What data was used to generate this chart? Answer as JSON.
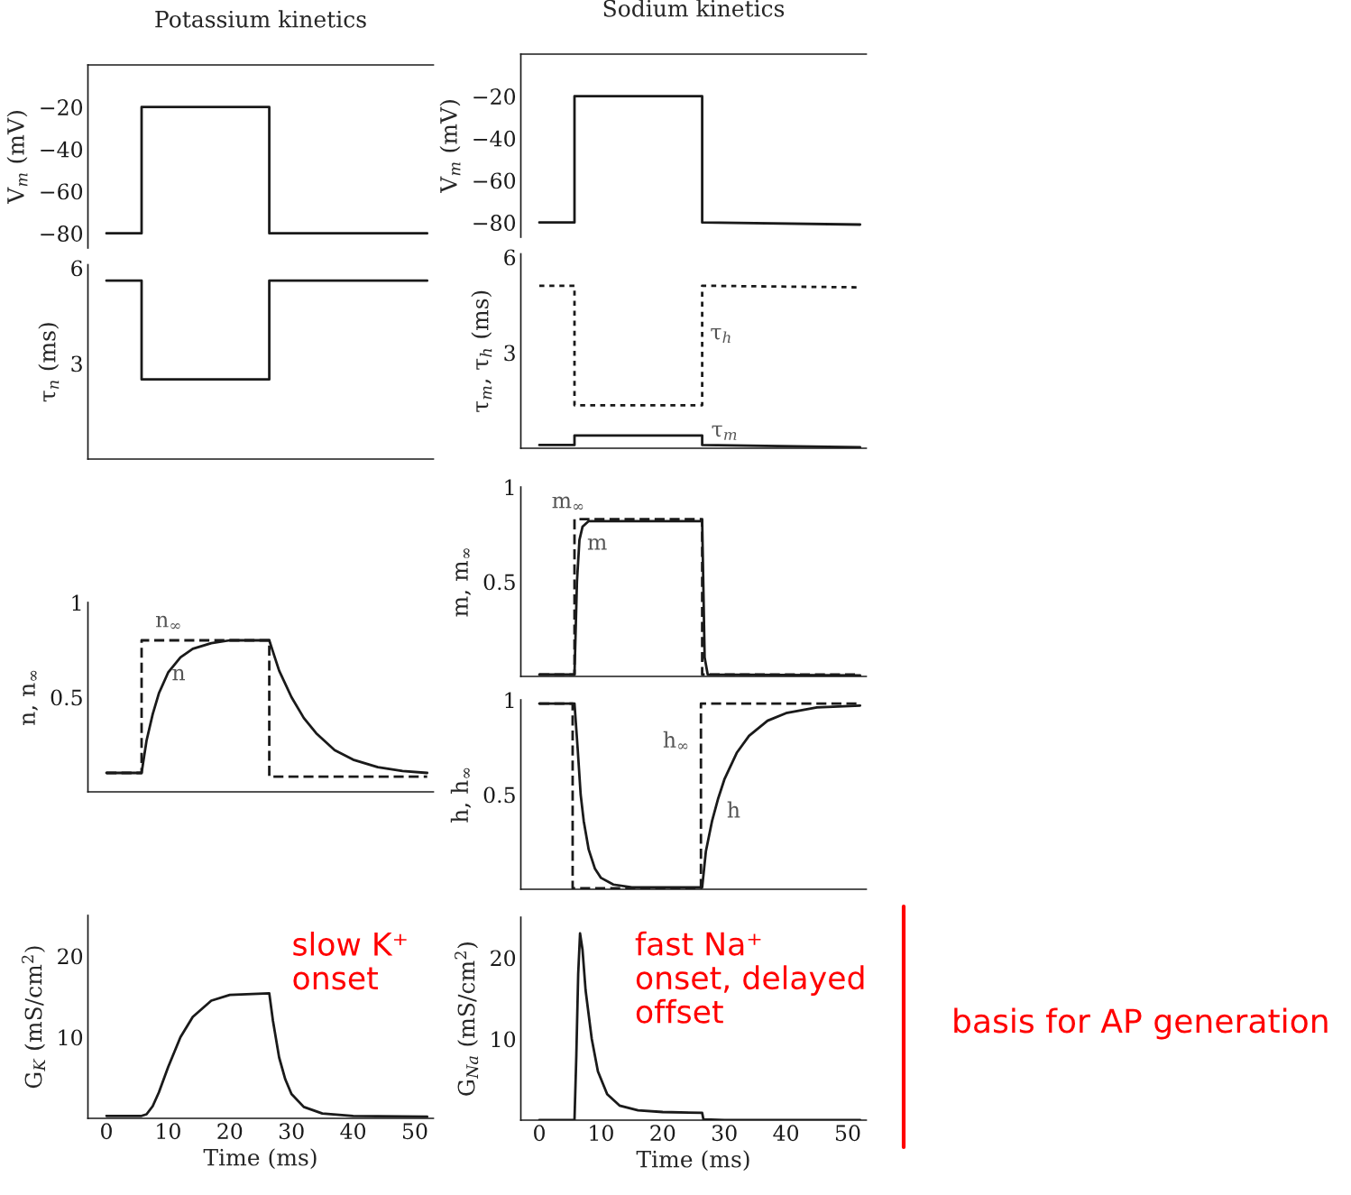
{
  "chart_data": [
    {
      "type": "line",
      "title": "Potassium kinetics",
      "ylabel": "V$_{m}$ (mV)",
      "xlim": [
        -3,
        53
      ],
      "ylim": [
        -87,
        0
      ],
      "xticks": [
        0,
        10,
        20,
        30,
        40,
        50
      ],
      "yticks": [
        {
          "value": -20,
          "label": "−20"
        },
        {
          "value": -40,
          "label": "−40"
        },
        {
          "value": -60,
          "label": "−60"
        },
        {
          "value": -80,
          "label": "−80"
        }
      ],
      "tick_labels": "y",
      "series": [
        {
          "color": "#1a1a1a",
          "line_style": "solid",
          "x": [
            0,
            5.7,
            5.7,
            26.4,
            26.4,
            52
          ],
          "values": [
            -80,
            -80,
            -20,
            -20,
            -80,
            -80
          ]
        }
      ]
    },
    {
      "type": "line",
      "title": "Sodium kinetics",
      "ylabel": "V$_{m}$ (mV)",
      "xlim": [
        -3,
        53
      ],
      "ylim": [
        -87,
        0
      ],
      "xticks": [
        0,
        10,
        20,
        30,
        40,
        50
      ],
      "yticks": [
        {
          "value": -20,
          "label": "−20"
        },
        {
          "value": -40,
          "label": "−40"
        },
        {
          "value": -60,
          "label": "−60"
        },
        {
          "value": -80,
          "label": "−80"
        }
      ],
      "tick_labels": "y",
      "series": [
        {
          "color": "#1a1a1a",
          "line_style": "solid",
          "x": [
            0,
            5.7,
            5.7,
            26.4,
            26.4,
            52
          ],
          "values": [
            -80,
            -80,
            -20,
            -20,
            -80,
            -81
          ]
        }
      ]
    },
    {
      "type": "line",
      "ylabel": "τ$_{n}$ (ms)",
      "xlim": [
        -3,
        53
      ],
      "ylim": [
        0,
        6.1
      ],
      "xticks": [
        0,
        10,
        20,
        30,
        40,
        50
      ],
      "yticks": [
        3,
        6
      ],
      "tick_labels": "y",
      "series": [
        {
          "color": "#1a1a1a",
          "line_style": "solid",
          "x": [
            0,
            5.7,
            5.7,
            26.4,
            26.4,
            52
          ],
          "values": [
            5.6,
            5.6,
            2.5,
            2.5,
            5.6,
            5.6
          ]
        }
      ]
    },
    {
      "type": "line",
      "ylabel": "τ$_{m}$, τ$_{h}$ (ms)",
      "xlim": [
        -3,
        53
      ],
      "ylim": [
        0,
        6.1
      ],
      "xticks": [
        0,
        10,
        20,
        30,
        40,
        50
      ],
      "yticks": [
        3,
        6
      ],
      "tick_labels": "y",
      "series": [
        {
          "color": "#1a1a1a",
          "line_style": "dotted",
          "x": [
            0,
            5.7,
            5.7,
            26.4,
            26.4,
            52
          ],
          "values": [
            5.1,
            5.1,
            1.35,
            1.35,
            5.1,
            5.05
          ]
        },
        {
          "color": "#1a1a1a",
          "line_style": "solid",
          "x": [
            0,
            5.7,
            5.7,
            26.4,
            26.4,
            52
          ],
          "values": [
            0.1,
            0.1,
            0.4,
            0.4,
            0.1,
            0.03
          ]
        }
      ],
      "annotations": [
        "τ$_{h}$",
        "τ$_{m}$"
      ]
    },
    {
      "type": "line",
      "ylabel": "m, m$_{∞}$",
      "xlim": [
        -3,
        53
      ],
      "ylim": [
        0,
        1
      ],
      "xticks": [
        0,
        10,
        20,
        30,
        40,
        50
      ],
      "yticks": [
        0.5,
        1
      ],
      "tick_labels": "y",
      "series": [
        {
          "color": "#1a1a1a",
          "line_style": "solid",
          "x": [
            0,
            5.7,
            6.1,
            6.5,
            7,
            8,
            26.4,
            26.8,
            27.3,
            52
          ],
          "values": [
            0.01,
            0.01,
            0.5,
            0.72,
            0.79,
            0.82,
            0.82,
            0.1,
            0.01,
            0.005
          ]
        },
        {
          "color": "#1a1a1a",
          "line_style": "dashed",
          "x": [
            0,
            5.7,
            5.7,
            26.4,
            26.4,
            52
          ],
          "values": [
            0.01,
            0.01,
            0.83,
            0.83,
            0.01,
            0.01
          ]
        }
      ],
      "annotations": [
        "m$_{∞}$",
        "m"
      ]
    },
    {
      "type": "line",
      "ylabel": "n, n$_{∞}$",
      "xlim": [
        -3,
        53
      ],
      "ylim": [
        0,
        1
      ],
      "xticks": [
        0,
        10,
        20,
        30,
        40,
        50
      ],
      "yticks": [
        0.5,
        1
      ],
      "tick_labels": "y",
      "series": [
        {
          "color": "#1a1a1a",
          "line_style": "solid",
          "x": [
            0,
            5.7,
            6.5,
            7.5,
            8.5,
            10,
            12,
            14,
            17,
            20,
            26.4,
            27,
            28,
            30,
            32,
            34,
            37,
            40,
            44,
            48,
            52
          ],
          "values": [
            0.1,
            0.1,
            0.27,
            0.41,
            0.52,
            0.63,
            0.71,
            0.755,
            0.785,
            0.8,
            0.8,
            0.74,
            0.64,
            0.5,
            0.39,
            0.31,
            0.22,
            0.17,
            0.13,
            0.11,
            0.1
          ]
        },
        {
          "color": "#1a1a1a",
          "line_style": "dashed",
          "x": [
            0,
            5.7,
            5.7,
            26.4,
            26.4,
            52
          ],
          "values": [
            0.1,
            0.1,
            0.8,
            0.8,
            0.08,
            0.08
          ]
        }
      ],
      "annotations": [
        "n$_{∞}$",
        "n"
      ]
    },
    {
      "type": "line",
      "ylabel": "h, h$_{∞}$",
      "xlim": [
        -3,
        53
      ],
      "ylim": [
        0,
        1
      ],
      "xticks": [
        0,
        10,
        20,
        30,
        40,
        50
      ],
      "yticks": [
        0.5,
        1
      ],
      "tick_labels": "y",
      "series": [
        {
          "color": "#1a1a1a",
          "line_style": "solid",
          "x": [
            0,
            5.7,
            6.2,
            6.7,
            7.2,
            8,
            9,
            10,
            12,
            15,
            20,
            26.4,
            27,
            28,
            29,
            30,
            32,
            34,
            37,
            40,
            45,
            52
          ],
          "values": [
            0.98,
            0.98,
            0.75,
            0.5,
            0.36,
            0.21,
            0.11,
            0.06,
            0.025,
            0.01,
            0.01,
            0.01,
            0.2,
            0.36,
            0.48,
            0.58,
            0.72,
            0.81,
            0.89,
            0.93,
            0.96,
            0.97
          ]
        },
        {
          "color": "#1a1a1a",
          "line_style": "dashed",
          "x": [
            0,
            5.4,
            5.4,
            26.2,
            26.2,
            52
          ],
          "values": [
            0.98,
            0.98,
            0.005,
            0.005,
            0.98,
            0.98
          ]
        }
      ],
      "annotations": [
        "h$_{∞}$",
        "h"
      ]
    },
    {
      "type": "line",
      "xlabel": "Time (ms)",
      "ylabel": "G$_{K}$ (mS/cm$^{2}$)",
      "xlim": [
        -3,
        53
      ],
      "ylim": [
        0,
        25
      ],
      "xticks": [
        0,
        10,
        20,
        30,
        40,
        50
      ],
      "yticks": [
        10,
        20
      ],
      "series": [
        {
          "color": "#1a1a1a",
          "line_style": "solid",
          "x": [
            0,
            5.7,
            6.5,
            7.5,
            8.5,
            10,
            12,
            14,
            17,
            20,
            26.4,
            27,
            28,
            29,
            30,
            32,
            35,
            40,
            52
          ],
          "values": [
            0.3,
            0.3,
            0.5,
            1.5,
            3.2,
            6.3,
            10,
            12.5,
            14.5,
            15.2,
            15.4,
            12,
            7.5,
            4.8,
            3,
            1.4,
            0.6,
            0.3,
            0.2
          ]
        }
      ],
      "annotations": [
        "slow K⁺\nonset"
      ]
    },
    {
      "type": "line",
      "xlabel": "Time (ms)",
      "ylabel": "G$_{Na}$ (mS/cm$^{2}$)",
      "xlim": [
        -3,
        53
      ],
      "ylim": [
        0,
        25
      ],
      "xticks": [
        0,
        10,
        20,
        30,
        40,
        50
      ],
      "yticks": [
        10,
        20
      ],
      "series": [
        {
          "color": "#1a1a1a",
          "line_style": "solid",
          "x": [
            0,
            5.7,
            6,
            6.3,
            6.6,
            7,
            7.5,
            8.5,
            9.5,
            11,
            13,
            16,
            20,
            26.4,
            26.6,
            30,
            52
          ],
          "values": [
            0,
            0,
            8,
            18,
            23,
            21,
            16,
            10,
            6,
            3.2,
            1.8,
            1.2,
            1.0,
            0.9,
            0.1,
            0,
            0
          ]
        }
      ],
      "annotations": [
        "fast Na⁺\nonset, delayed\noffset",
        "basis for AP generation"
      ]
    }
  ]
}
